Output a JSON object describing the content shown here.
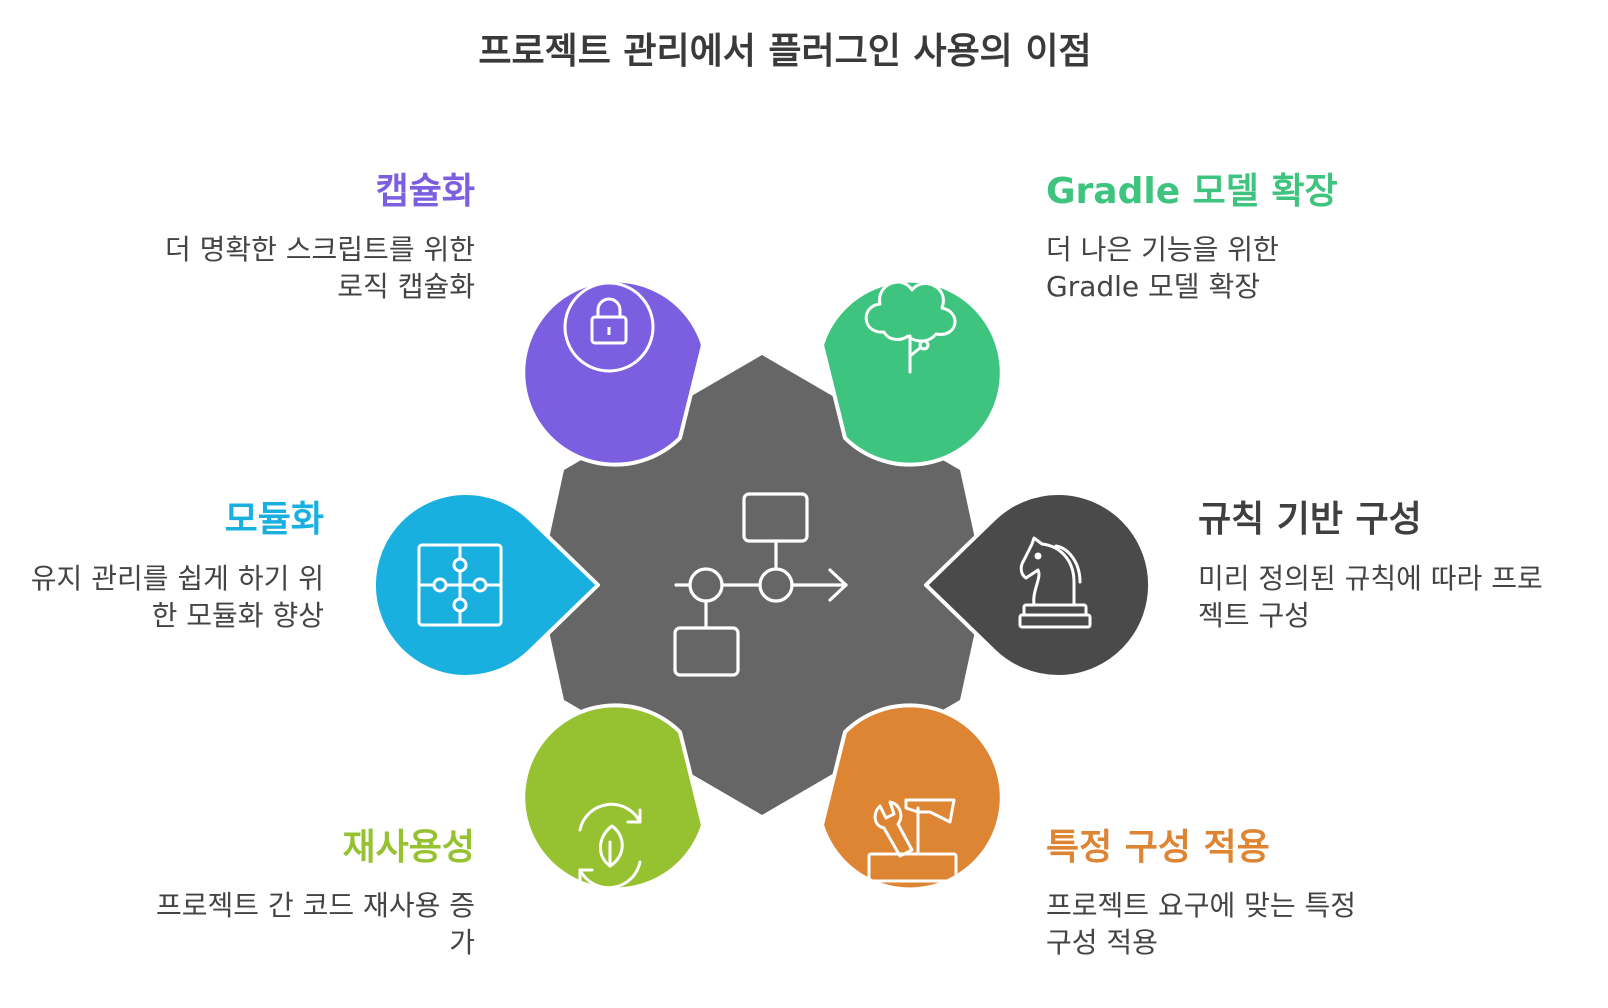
{
  "title": "프로젝트 관리에서 플러그인 사용의 이점",
  "items": [
    {
      "key": "encapsulation",
      "label": "캡슐화",
      "description": "더 명확한 스크립트를 위한 로직 캡슐화",
      "color": "#7B5FE0",
      "icon": "lock-icon"
    },
    {
      "key": "gradle",
      "label": "Gradle 모델 확장",
      "description": "더 나은 기능을 위한 Gradle 모델 확장",
      "color": "#3EC47F",
      "icon": "tree-icon"
    },
    {
      "key": "modularization",
      "label": "모듈화",
      "description": "유지 관리를 쉽게 하기 위한 모듈화 향상",
      "color": "#19B0E0",
      "icon": "puzzle-icon"
    },
    {
      "key": "rules",
      "label": "규칙 기반 구성",
      "description": "미리 정의된 규칙에 따라 프로젝트 구성",
      "color": "#4A4A4A",
      "icon": "chess-knight-icon"
    },
    {
      "key": "reuse",
      "label": "재사용성",
      "description": "프로젝트 간 코드 재사용 증가",
      "color": "#96C232",
      "icon": "recycle-leaf-icon"
    },
    {
      "key": "specific",
      "label": "특정 구성 적용",
      "description": "프로젝트 요구에 맞는 특정 구성 적용",
      "color": "#DE8533",
      "icon": "toolbox-icon"
    }
  ],
  "center": {
    "color": "#666666",
    "icon": "workflow-icon"
  }
}
